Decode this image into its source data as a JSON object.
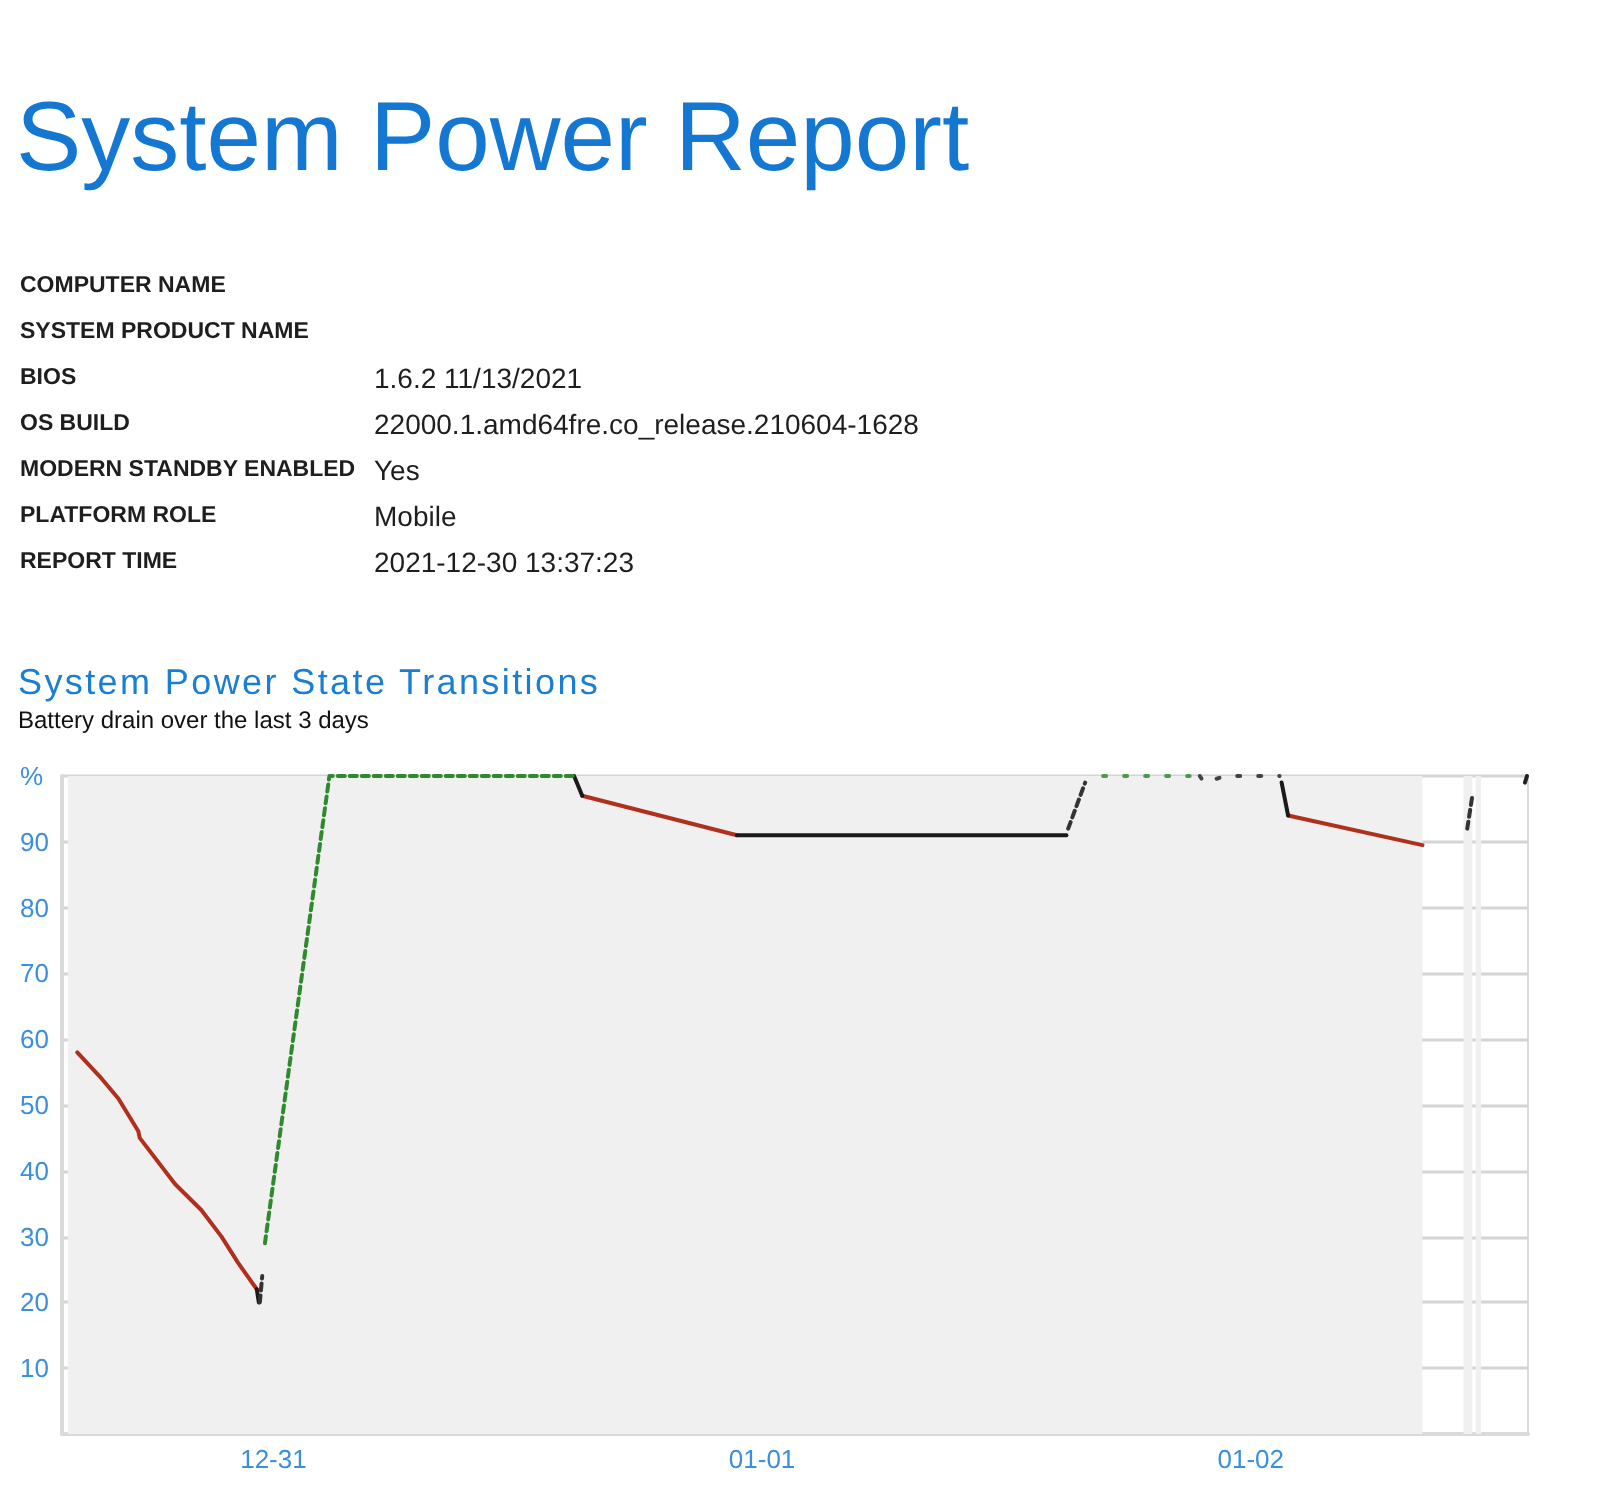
{
  "chart_data": [
    {
      "type": "other",
      "title": "System Power Report",
      "categories": [
        "COMPUTER NAME",
        "SYSTEM PRODUCT NAME",
        "BIOS",
        "OS BUILD",
        "MODERN STANDBY ENABLED",
        "PLATFORM ROLE",
        "REPORT TIME"
      ],
      "value_labels": [
        null,
        null,
        "1.6.2 11/13/2021",
        "22000.1.amd64fre.co_release.210604-1628",
        "Yes",
        "Mobile",
        "2021-12-30 13:37:23"
      ]
    },
    {
      "type": "line",
      "title": "System Power State Transitions",
      "subtitle": "Battery drain over the last 3 days",
      "xlim": [
        "2021-12-30T13:37",
        "2022-01-02T13:37"
      ],
      "xticks": [
        {
          "value": "2021-12-31",
          "label": "12-31"
        },
        {
          "value": "2022-01-01",
          "label": "01-01"
        },
        {
          "value": "2022-01-02",
          "label": "01-02"
        }
      ],
      "ylim": [
        0,
        100
      ],
      "yticks": [
        10,
        20,
        30,
        40,
        50,
        60,
        70,
        80,
        90,
        {
          "value": 100,
          "label": "%"
        }
      ],
      "grid": true,
      "marker": "none",
      "bands": [
        {
          "axis": "x",
          "from": "2021-12-30T13:54",
          "to": "2022-01-02T08:26",
          "color": "#f0f0f0"
        },
        {
          "axis": "x",
          "from": "2022-01-02T10:27",
          "to": "2022-01-02T10:53",
          "color": "#f0f0f0"
        },
        {
          "axis": "x",
          "from": "2022-01-02T11:03",
          "to": "2022-01-02T11:19",
          "color": "#f0f0f0"
        }
      ],
      "series": [
        {
          "color": "#b0301e",
          "line_style": "solid",
          "x": [
            "2021-12-30T14:22",
            "2021-12-30T15:34",
            "2021-12-30T16:23",
            "2021-12-30T17:22",
            "2021-12-30T17:26",
            "2021-12-30T19:10",
            "2021-12-30T20:28",
            "2021-12-30T21:27",
            "2021-12-30T22:16",
            "2021-12-30T23:11",
            "2021-12-31T03:00",
            "2021-12-31T15:10",
            "2021-12-31T22:46",
            "2022-01-01T12:00",
            "2022-01-02T01:50",
            "2022-01-02T08:26"
          ],
          "values": [
            58,
            54,
            51,
            46,
            45,
            38,
            34,
            30,
            26,
            22,
            null,
            97,
            91,
            null,
            94,
            89.5
          ]
        },
        {
          "color": "#1a1a1a",
          "line_style": "solid",
          "x": [
            "2021-12-30T23:11",
            "2021-12-30T23:17",
            "2021-12-31T06:00",
            "2021-12-31T14:46",
            "2021-12-31T15:10",
            "2021-12-31T18:00",
            "2021-12-31T22:46",
            "2022-01-01T14:57",
            "2022-01-01T20:00",
            "2022-01-02T01:31",
            "2022-01-02T01:50"
          ],
          "values": [
            22,
            20,
            null,
            100,
            97,
            null,
            91,
            91,
            null,
            99,
            94
          ]
        },
        {
          "color": "#333333",
          "line_style": "dashed",
          "x": [
            "2021-12-30T23:20",
            "2021-12-30T23:27",
            "2022-01-01T06:00",
            "2022-01-01T15:02",
            "2022-01-01T15:52",
            "2022-01-02T06:00",
            "2022-01-02T10:38",
            "2022-01-02T10:53"
          ],
          "values": [
            20,
            24,
            null,
            92,
            99,
            null,
            92,
            97
          ]
        },
        {
          "color": "#2f8a2f",
          "line_style": "dashed",
          "x": [
            "2021-12-30T23:35",
            "2021-12-31T02:45",
            "2021-12-31T14:46"
          ],
          "values": [
            29,
            100,
            100
          ]
        },
        {
          "color": "#4a9a4a",
          "line_style": "dotted",
          "x": [
            "2022-01-01T16:45",
            "2022-01-01T21:00"
          ],
          "values": [
            100,
            100
          ]
        },
        {
          "color": "#444444",
          "line_style": "dotted",
          "x": [
            "2022-01-01T21:30",
            "2022-01-01T21:42",
            "2022-01-01T22:46",
            "2022-01-02T01:25"
          ],
          "values": [
            100,
            99,
            100,
            100
          ]
        },
        {
          "color": "#222222",
          "line_style": "solid",
          "x": [
            "2022-01-02T13:28",
            "2022-01-02T13:34"
          ],
          "values": [
            99,
            100
          ]
        }
      ]
    }
  ]
}
